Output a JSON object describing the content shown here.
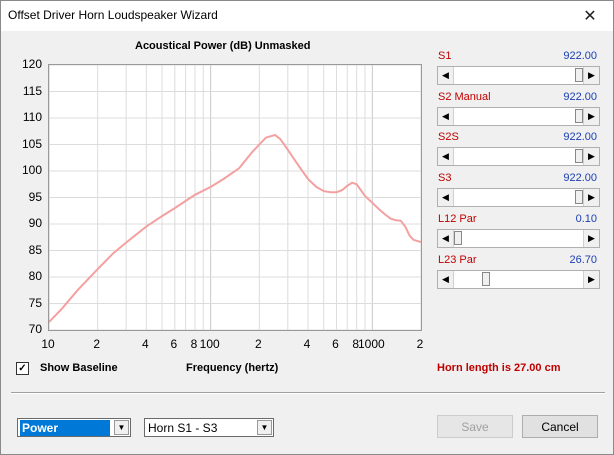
{
  "window": {
    "title": "Offset Driver Horn Loudspeaker Wizard",
    "close_glyph": "✕"
  },
  "chart_data": {
    "type": "line",
    "title": "Acoustical Power (dB)   Unmasked",
    "xlabel": "Frequency (hertz)",
    "ylabel": "",
    "xscale": "log",
    "xlim": [
      10,
      2000
    ],
    "ylim": [
      70,
      120
    ],
    "yticks": [
      120,
      115,
      110,
      105,
      100,
      95,
      90,
      85,
      80,
      75,
      70
    ],
    "xtick_labels": [
      {
        "value": 10,
        "label": "10"
      },
      {
        "value": 20,
        "label": "2"
      },
      {
        "value": 40,
        "label": "4"
      },
      {
        "value": 60,
        "label": "6"
      },
      {
        "value": 80,
        "label": "8"
      },
      {
        "value": 100,
        "label": "100"
      },
      {
        "value": 200,
        "label": "2"
      },
      {
        "value": 400,
        "label": "4"
      },
      {
        "value": 600,
        "label": "6"
      },
      {
        "value": 800,
        "label": "8"
      },
      {
        "value": 1000,
        "label": "1000"
      },
      {
        "value": 2000,
        "label": "2"
      }
    ],
    "grid": true,
    "line_color": "#f4a0a0",
    "series": [
      {
        "x": [
          10,
          12,
          15,
          20,
          25,
          30,
          40,
          50,
          60,
          80,
          100,
          120,
          150,
          180,
          200,
          220,
          250,
          270,
          300,
          350,
          400,
          450,
          500,
          550,
          600,
          650,
          700,
          750,
          800,
          900,
          1000,
          1100,
          1200,
          1300,
          1400,
          1500,
          1600,
          1700,
          1800,
          2000
        ],
        "y": [
          71.5,
          74.0,
          77.5,
          81.5,
          84.5,
          86.5,
          89.5,
          91.5,
          93.0,
          95.5,
          97.0,
          98.5,
          100.5,
          103.5,
          105.0,
          106.3,
          106.8,
          106.0,
          104.0,
          101.0,
          98.5,
          97.0,
          96.2,
          96.0,
          96.0,
          96.4,
          97.2,
          97.8,
          97.5,
          95.3,
          94.0,
          92.8,
          91.8,
          91.0,
          90.7,
          90.6,
          89.5,
          87.8,
          87.0,
          86.6
        ]
      }
    ]
  },
  "sliders": [
    {
      "label": "S1",
      "value": "922.00",
      "fraction": 1.0
    },
    {
      "label": "S2  Manual",
      "value": "922.00",
      "fraction": 1.0
    },
    {
      "label": "S2S",
      "value": "922.00",
      "fraction": 1.0
    },
    {
      "label": "S3",
      "value": "922.00",
      "fraction": 1.0
    },
    {
      "label": "L12  Par",
      "value": "0.10",
      "fraction": 0.0
    },
    {
      "label": "L23  Par",
      "value": "26.70",
      "fraction": 0.23
    }
  ],
  "show_baseline": {
    "label": "Show Baseline",
    "checked": true,
    "check_glyph": "✓"
  },
  "horn_length": "Horn length is 27.00 cm",
  "controls": {
    "mode_select": "Power",
    "horn_select": "Horn S1 - S3",
    "save_label": "Save",
    "cancel_label": "Cancel"
  },
  "colors": {
    "accent_red": "#c00000",
    "value_blue": "#1b3fb3",
    "selection_blue": "#0078d7"
  }
}
